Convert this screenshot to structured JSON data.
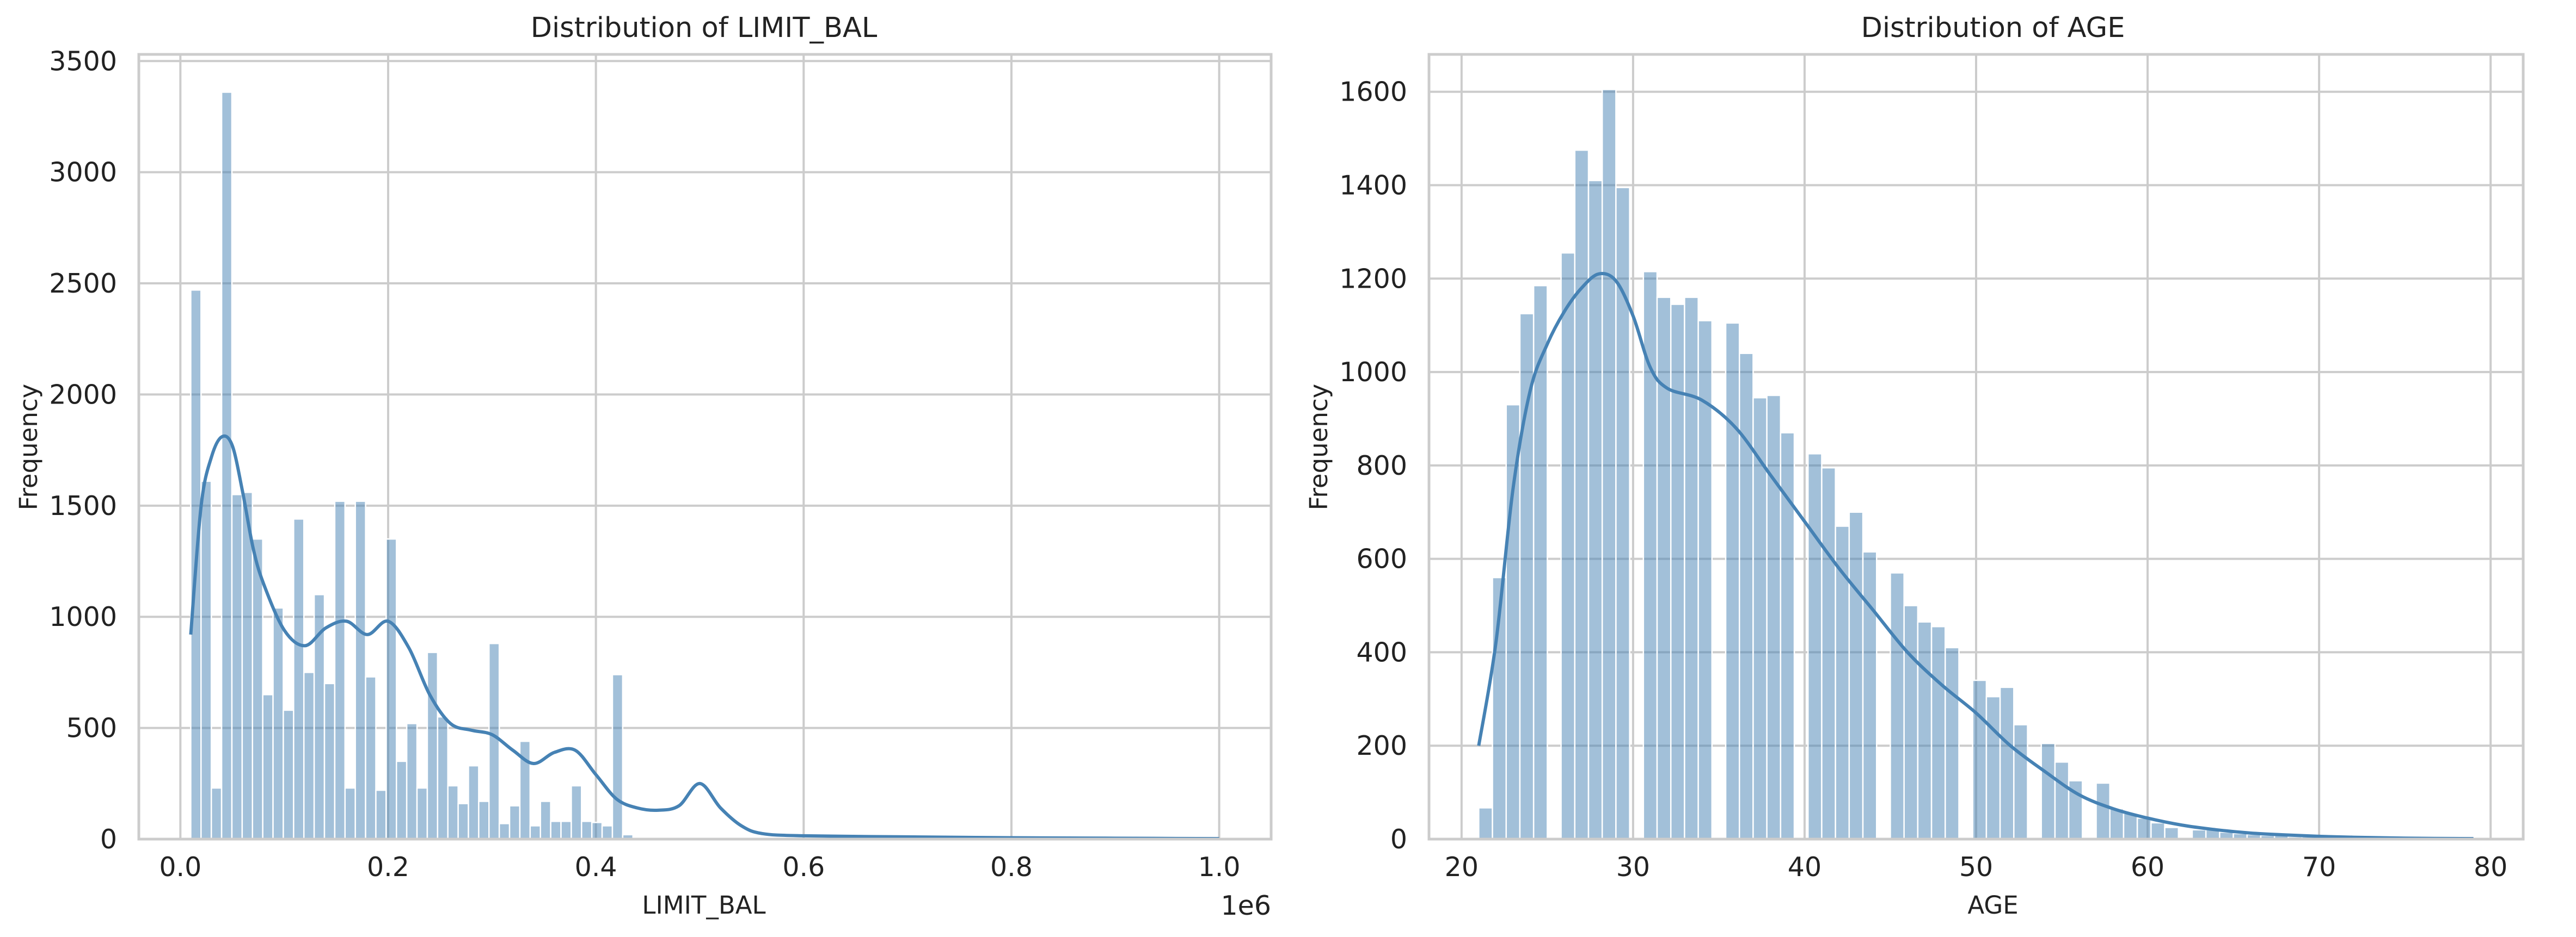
{
  "chart_data": [
    {
      "type": "bar",
      "title": "Distribution of LIMIT_BAL",
      "xlabel": "LIMIT_BAL",
      "ylabel": "Frequency",
      "x_offset_label": "1e6",
      "xlim": [
        -0.04,
        1.05
      ],
      "ylim": [
        0,
        3530
      ],
      "xticks": [
        0.0,
        0.2,
        0.4,
        0.6,
        0.8,
        1.0
      ],
      "xtick_labels": [
        "0.0",
        "0.2",
        "0.4",
        "0.6",
        "0.8",
        "1.0"
      ],
      "yticks": [
        0,
        500,
        1000,
        1500,
        2000,
        2500,
        3000,
        3500
      ],
      "ytick_labels": [
        "0",
        "500",
        "1000",
        "1500",
        "2000",
        "2500",
        "3000",
        "3500"
      ],
      "grid": true,
      "bar_color": "#4682b4",
      "kde_color": "#4682b4",
      "bins": {
        "start": 0.01,
        "width": 0.0099,
        "counts": [
          2470,
          1610,
          230,
          3360,
          1550,
          1560,
          1350,
          650,
          1040,
          580,
          1440,
          750,
          1100,
          700,
          1520,
          230,
          1520,
          730,
          220,
          1350,
          350,
          520,
          230,
          840,
          550,
          240,
          160,
          330,
          170,
          880,
          70,
          150,
          440,
          60,
          170,
          80,
          80,
          240,
          80,
          75,
          60,
          740,
          20,
          3,
          3,
          3,
          3,
          3,
          2,
          2,
          2,
          2,
          2,
          2,
          2,
          2,
          2,
          1,
          1,
          1,
          1,
          1,
          1,
          1,
          1,
          1,
          1,
          1,
          1,
          1,
          1,
          1,
          1,
          1,
          1,
          1,
          1,
          1,
          1,
          1,
          1,
          1,
          1,
          1,
          1,
          1,
          1,
          1,
          1,
          1,
          1,
          1,
          1,
          1,
          1,
          1,
          1,
          1,
          1
        ]
      },
      "kde": {
        "x": [
          0.01,
          0.02,
          0.03,
          0.04,
          0.05,
          0.06,
          0.07,
          0.08,
          0.1,
          0.12,
          0.14,
          0.16,
          0.18,
          0.2,
          0.22,
          0.24,
          0.26,
          0.28,
          0.3,
          0.32,
          0.34,
          0.36,
          0.38,
          0.4,
          0.42,
          0.44,
          0.46,
          0.48,
          0.5,
          0.52,
          0.54,
          0.56,
          0.6,
          0.7,
          0.8,
          0.9,
          1.0
        ],
        "y": [
          920,
          1500,
          1720,
          1810,
          1770,
          1560,
          1310,
          1150,
          940,
          870,
          950,
          980,
          920,
          980,
          860,
          650,
          520,
          490,
          470,
          400,
          340,
          390,
          400,
          290,
          180,
          140,
          130,
          150,
          250,
          140,
          60,
          25,
          15,
          10,
          6,
          4,
          2
        ]
      }
    },
    {
      "type": "bar",
      "title": "Distribution of AGE",
      "xlabel": "AGE",
      "ylabel": "Frequency",
      "xlim": [
        18.1,
        81.9
      ],
      "ylim": [
        0,
        1680
      ],
      "xticks": [
        20,
        30,
        40,
        50,
        60,
        70,
        80
      ],
      "xtick_labels": [
        "20",
        "30",
        "40",
        "50",
        "60",
        "70",
        "80"
      ],
      "yticks": [
        0,
        200,
        400,
        600,
        800,
        1000,
        1200,
        1400,
        1600
      ],
      "ytick_labels": [
        "0",
        "200",
        "400",
        "600",
        "800",
        "1000",
        "1200",
        "1400",
        "1600"
      ],
      "grid": true,
      "bar_color": "#4682b4",
      "kde_color": "#4682b4",
      "bins": {
        "start": 21,
        "width": 0.8,
        "counts": [
          67,
          560,
          930,
          1125,
          1185,
          0,
          1255,
          1475,
          1410,
          1605,
          1395,
          0,
          1215,
          1160,
          1145,
          1160,
          1110,
          0,
          1105,
          1040,
          945,
          950,
          870,
          0,
          825,
          795,
          670,
          700,
          615,
          0,
          570,
          500,
          465,
          455,
          410,
          0,
          340,
          305,
          325,
          245,
          0,
          205,
          165,
          125,
          0,
          120,
          65,
          55,
          45,
          35,
          25,
          0,
          20,
          20,
          15,
          12,
          10,
          8,
          8,
          5,
          5,
          4,
          3,
          3,
          3,
          3,
          2,
          2,
          2,
          2,
          2,
          1
        ]
      },
      "kde": {
        "x": [
          21,
          22,
          23,
          24,
          25,
          26,
          27,
          28,
          29,
          30,
          31,
          32,
          34,
          36,
          38,
          40,
          42,
          44,
          46,
          48,
          50,
          52,
          54,
          56,
          58,
          60,
          62,
          64,
          66,
          68,
          70,
          72,
          75,
          79
        ],
        "y": [
          200,
          420,
          750,
          960,
          1060,
          1130,
          1180,
          1210,
          1195,
          1120,
          1010,
          965,
          940,
          880,
          780,
          680,
          580,
          490,
          400,
          330,
          270,
          200,
          145,
          95,
          65,
          45,
          30,
          20,
          13,
          9,
          6,
          4,
          2,
          1
        ]
      }
    }
  ]
}
